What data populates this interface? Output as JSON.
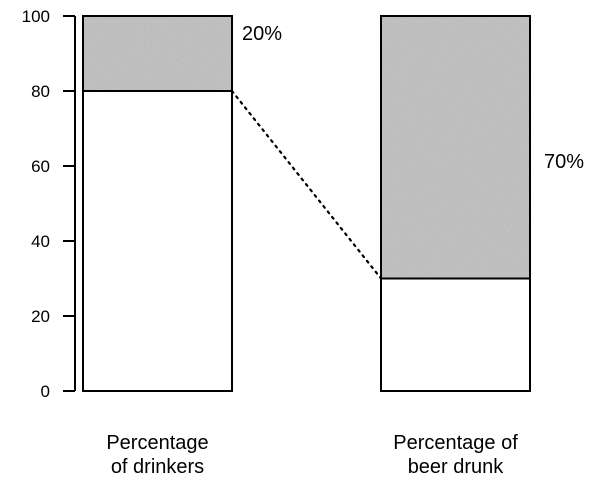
{
  "chart_data": {
    "type": "bar",
    "stacked": true,
    "ylim": [
      0,
      100
    ],
    "yticks": [
      0,
      20,
      40,
      60,
      80,
      100
    ],
    "categories": [
      "Percentage of drinkers",
      "Percentage of beer drunk"
    ],
    "category_label_lines": [
      [
        "Percentage",
        "of drinkers"
      ],
      [
        "Percentage of",
        "beer drunk"
      ]
    ],
    "series": [
      {
        "values": [
          80,
          30
        ],
        "fill": "#ffffff"
      },
      {
        "values": [
          20,
          70
        ],
        "fill": "#b4b4b4"
      }
    ],
    "annotations": [
      "20%",
      "70%"
    ],
    "connector": {
      "style": "dotted",
      "from": {
        "bar": 0,
        "y": 80
      },
      "to": {
        "bar": 1,
        "y": 30
      }
    },
    "grid": false,
    "title": "",
    "xlabel": "",
    "ylabel": ""
  }
}
